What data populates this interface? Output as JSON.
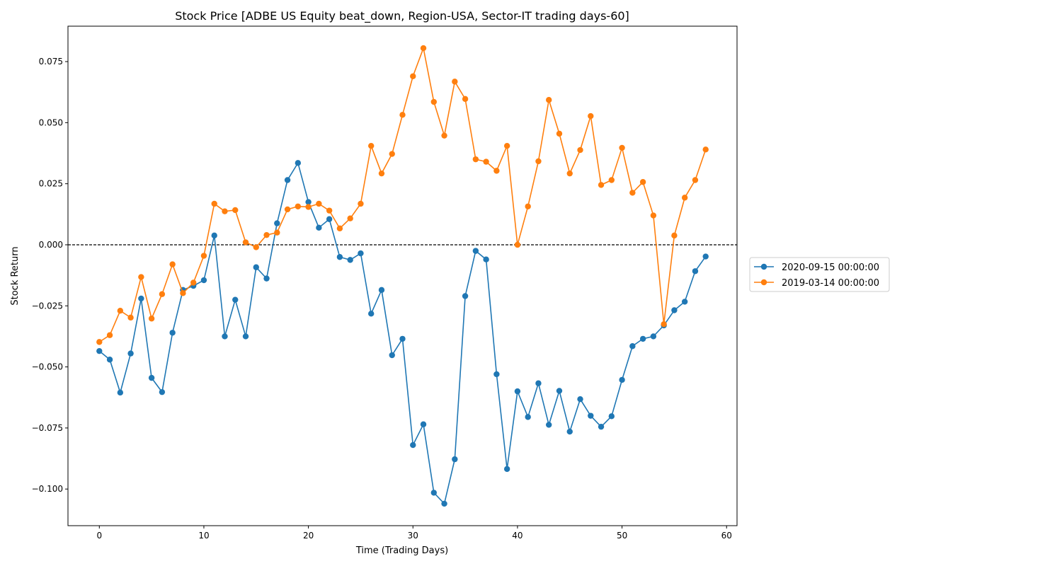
{
  "chart_data": {
    "type": "line",
    "title": "Stock Price [ADBE US Equity beat_down, Region-USA, Sector-IT trading days-60]",
    "xlabel": "Time (Trading Days)",
    "ylabel": "Stock Return",
    "xlim": [
      -3,
      61
    ],
    "ylim": [
      -0.115,
      0.0895
    ],
    "xticks": [
      0,
      10,
      20,
      30,
      40,
      50,
      60
    ],
    "yticks": [
      -0.1,
      -0.075,
      -0.05,
      -0.025,
      0.0,
      0.025,
      0.05,
      0.075
    ],
    "ytick_labels": [
      "−0.100",
      "−0.075",
      "−0.050",
      "−0.025",
      "0.000",
      "0.025",
      "0.050",
      "0.075"
    ],
    "reference_line": {
      "y": 0,
      "style": "dashed",
      "color": "#000000"
    },
    "grid": false,
    "legend_position": "right",
    "series": [
      {
        "name": "2020-09-15 00:00:00",
        "color": "#1f77b4",
        "values": [
          -0.0435,
          -0.047,
          -0.0605,
          -0.0445,
          -0.022,
          -0.0545,
          -0.0603,
          -0.036,
          -0.0185,
          -0.0168,
          -0.0145,
          0.0038,
          -0.0375,
          -0.0225,
          -0.0375,
          -0.0092,
          -0.0138,
          0.0088,
          0.0265,
          0.0335,
          0.0175,
          0.007,
          0.0105,
          -0.005,
          -0.0062,
          -0.0035,
          -0.0282,
          -0.0185,
          -0.0452,
          -0.0385,
          -0.082,
          -0.0735,
          -0.1015,
          -0.106,
          -0.0878,
          -0.021,
          -0.0025,
          -0.006,
          -0.053,
          -0.0918,
          -0.06,
          -0.0705,
          -0.0567,
          -0.0737,
          -0.0598,
          -0.0765,
          -0.0632,
          -0.07,
          -0.0745,
          -0.0702,
          -0.0553,
          -0.0415,
          -0.0385,
          -0.0375,
          -0.033,
          -0.0268,
          -0.0233,
          -0.0108,
          -0.0048
        ]
      },
      {
        "name": "2019-03-14 00:00:00",
        "color": "#ff7f0e",
        "values": [
          -0.0398,
          -0.037,
          -0.027,
          -0.0298,
          -0.0132,
          -0.0302,
          -0.0202,
          -0.008,
          -0.0198,
          -0.0155,
          -0.0045,
          0.0168,
          0.0137,
          0.0142,
          0.001,
          -0.001,
          0.004,
          0.005,
          0.0145,
          0.0157,
          0.0155,
          0.0168,
          0.014,
          0.0067,
          0.0108,
          0.0168,
          0.0405,
          0.0292,
          0.0372,
          0.0532,
          0.069,
          0.0805,
          0.0585,
          0.0447,
          0.0668,
          0.0597,
          0.035,
          0.034,
          0.0303,
          0.0405,
          0.0,
          0.0157,
          0.0342,
          0.0593,
          0.0455,
          0.0292,
          0.0388,
          0.0527,
          0.0245,
          0.0265,
          0.0397,
          0.0213,
          0.0257,
          0.012,
          -0.0325,
          0.0038,
          0.0193,
          0.0265,
          0.039
        ]
      }
    ]
  }
}
